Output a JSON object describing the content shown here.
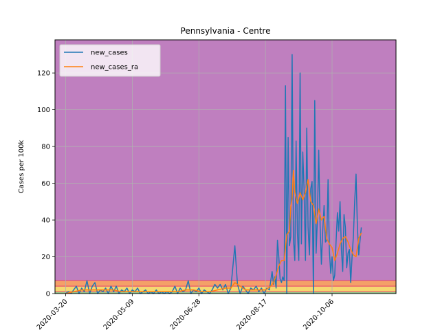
{
  "chart_data": {
    "type": "line",
    "title": "Pennsylvania - Centre",
    "xlabel": "",
    "ylabel": "Cases per 100k",
    "ylim": [
      0,
      138
    ],
    "x_range_days": [
      -8,
      248
    ],
    "xtick_labels": [
      {
        "label": "2020-03-20",
        "day": 0
      },
      {
        "label": "2020-05-09",
        "day": 50
      },
      {
        "label": "2020-06-28",
        "day": 100
      },
      {
        "label": "2020-08-17",
        "day": 150
      },
      {
        "label": "2020-10-06",
        "day": 200
      }
    ],
    "yticks": [
      0,
      20,
      40,
      60,
      80,
      100,
      120
    ],
    "grid": true,
    "legend_position": "top-left",
    "bands": [
      {
        "from": 0,
        "to": 1,
        "color": "#8ccf8c"
      },
      {
        "from": 1,
        "to": 4,
        "color": "#f5d870"
      },
      {
        "from": 4,
        "to": 7,
        "color": "#f4a068"
      },
      {
        "from": 7,
        "to": 138,
        "color": "#bf7fbf"
      }
    ],
    "band_edge_color": "#e8506a",
    "series": [
      {
        "name": "new_cases",
        "color": "#1f77b4",
        "points": [
          [
            0,
            0
          ],
          [
            2,
            1
          ],
          [
            4,
            0
          ],
          [
            6,
            2
          ],
          [
            8,
            4
          ],
          [
            10,
            0
          ],
          [
            12,
            3
          ],
          [
            14,
            1
          ],
          [
            16,
            7
          ],
          [
            18,
            0
          ],
          [
            20,
            4
          ],
          [
            22,
            6
          ],
          [
            24,
            0
          ],
          [
            26,
            2
          ],
          [
            28,
            1
          ],
          [
            30,
            3
          ],
          [
            32,
            0
          ],
          [
            34,
            4
          ],
          [
            36,
            1
          ],
          [
            38,
            4
          ],
          [
            40,
            0
          ],
          [
            42,
            2
          ],
          [
            44,
            1
          ],
          [
            46,
            3
          ],
          [
            48,
            0
          ],
          [
            50,
            2
          ],
          [
            52,
            1
          ],
          [
            54,
            3
          ],
          [
            56,
            0
          ],
          [
            58,
            1
          ],
          [
            60,
            2
          ],
          [
            62,
            0
          ],
          [
            64,
            1
          ],
          [
            66,
            0
          ],
          [
            68,
            2
          ],
          [
            70,
            0
          ],
          [
            72,
            1
          ],
          [
            74,
            0
          ],
          [
            76,
            1
          ],
          [
            78,
            0
          ],
          [
            80,
            1
          ],
          [
            82,
            4
          ],
          [
            84,
            0
          ],
          [
            86,
            3
          ],
          [
            88,
            1
          ],
          [
            90,
            2
          ],
          [
            92,
            7
          ],
          [
            94,
            0
          ],
          [
            96,
            2
          ],
          [
            98,
            1
          ],
          [
            100,
            3
          ],
          [
            102,
            0
          ],
          [
            104,
            2
          ],
          [
            106,
            1
          ],
          [
            108,
            0
          ],
          [
            110,
            2
          ],
          [
            112,
            5
          ],
          [
            114,
            3
          ],
          [
            116,
            5
          ],
          [
            118,
            2
          ],
          [
            120,
            5
          ],
          [
            122,
            0
          ],
          [
            124,
            3
          ],
          [
            127,
            26
          ],
          [
            129,
            5
          ],
          [
            131,
            0
          ],
          [
            133,
            4
          ],
          [
            135,
            2
          ],
          [
            137,
            0
          ],
          [
            139,
            3
          ],
          [
            141,
            2
          ],
          [
            143,
            4
          ],
          [
            145,
            1
          ],
          [
            147,
            3
          ],
          [
            149,
            0
          ],
          [
            151,
            3
          ],
          [
            153,
            2
          ],
          [
            155,
            12
          ],
          [
            156,
            5
          ],
          [
            157,
            9
          ],
          [
            158,
            3
          ],
          [
            159,
            29
          ],
          [
            160,
            20
          ],
          [
            161,
            8
          ],
          [
            162,
            6
          ],
          [
            163,
            9
          ],
          [
            164,
            7
          ],
          [
            165,
            113
          ],
          [
            166,
            0
          ],
          [
            167,
            85
          ],
          [
            168,
            26
          ],
          [
            169,
            31
          ],
          [
            170,
            130
          ],
          [
            171,
            30
          ],
          [
            172,
            18
          ],
          [
            173,
            83
          ],
          [
            174,
            33
          ],
          [
            175,
            18
          ],
          [
            176,
            120
          ],
          [
            177,
            27
          ],
          [
            178,
            77
          ],
          [
            179,
            57
          ],
          [
            180,
            18
          ],
          [
            181,
            90
          ],
          [
            182,
            36
          ],
          [
            183,
            21
          ],
          [
            184,
            57
          ],
          [
            185,
            61
          ],
          [
            186,
            0
          ],
          [
            187,
            105
          ],
          [
            188,
            22
          ],
          [
            189,
            41
          ],
          [
            190,
            78
          ],
          [
            191,
            37
          ],
          [
            192,
            16
          ],
          [
            193,
            34
          ],
          [
            194,
            48
          ],
          [
            195,
            28
          ],
          [
            196,
            29
          ],
          [
            197,
            62
          ],
          [
            198,
            23
          ],
          [
            199,
            11
          ],
          [
            200,
            20
          ],
          [
            201,
            7
          ],
          [
            202,
            10
          ],
          [
            203,
            28
          ],
          [
            204,
            44
          ],
          [
            205,
            34
          ],
          [
            206,
            50
          ],
          [
            207,
            24
          ],
          [
            208,
            12
          ],
          [
            209,
            43
          ],
          [
            210,
            36
          ],
          [
            211,
            14
          ],
          [
            212,
            22
          ],
          [
            213,
            24
          ],
          [
            214,
            6
          ],
          [
            215,
            20
          ],
          [
            216,
            31
          ],
          [
            217,
            50
          ],
          [
            218,
            65
          ],
          [
            219,
            37
          ],
          [
            220,
            21
          ],
          [
            221,
            29
          ],
          [
            222,
            36
          ]
        ]
      },
      {
        "name": "new_cases_ra",
        "color": "#ff7f0e",
        "points": [
          [
            0,
            0
          ],
          [
            6,
            1
          ],
          [
            12,
            2
          ],
          [
            18,
            2
          ],
          [
            24,
            2
          ],
          [
            30,
            2
          ],
          [
            36,
            2
          ],
          [
            42,
            1
          ],
          [
            48,
            1
          ],
          [
            54,
            1
          ],
          [
            60,
            1
          ],
          [
            66,
            1
          ],
          [
            72,
            1
          ],
          [
            78,
            1
          ],
          [
            84,
            1
          ],
          [
            90,
            2
          ],
          [
            96,
            2
          ],
          [
            102,
            1
          ],
          [
            108,
            1
          ],
          [
            114,
            2
          ],
          [
            120,
            3
          ],
          [
            124,
            3
          ],
          [
            127,
            6
          ],
          [
            131,
            4
          ],
          [
            135,
            2
          ],
          [
            140,
            2
          ],
          [
            145,
            2
          ],
          [
            150,
            2
          ],
          [
            154,
            4
          ],
          [
            156,
            6
          ],
          [
            158,
            10
          ],
          [
            160,
            15
          ],
          [
            162,
            18
          ],
          [
            164,
            18
          ],
          [
            166,
            32
          ],
          [
            168,
            34
          ],
          [
            169,
            47
          ],
          [
            170,
            52
          ],
          [
            171,
            67
          ],
          [
            172,
            55
          ],
          [
            174,
            49
          ],
          [
            176,
            55
          ],
          [
            178,
            51
          ],
          [
            180,
            55
          ],
          [
            182,
            62
          ],
          [
            184,
            50
          ],
          [
            186,
            48
          ],
          [
            188,
            38
          ],
          [
            190,
            46
          ],
          [
            192,
            40
          ],
          [
            194,
            42
          ],
          [
            196,
            30
          ],
          [
            198,
            27
          ],
          [
            200,
            25
          ],
          [
            202,
            18
          ],
          [
            204,
            22
          ],
          [
            206,
            27
          ],
          [
            208,
            30
          ],
          [
            210,
            31
          ],
          [
            212,
            28
          ],
          [
            214,
            24
          ],
          [
            216,
            21
          ],
          [
            218,
            20
          ],
          [
            220,
            30
          ],
          [
            222,
            33
          ]
        ]
      }
    ]
  }
}
